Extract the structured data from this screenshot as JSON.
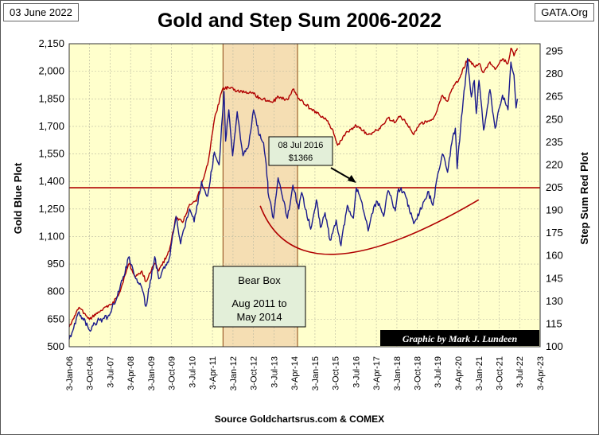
{
  "header": {
    "date_label": "03 June 2022",
    "credit": "GATA.Org",
    "title": "Gold and Step Sum 2006-2022"
  },
  "footer": {
    "source": "Source  Goldchartsrus.com  & COMEX"
  },
  "colors": {
    "plot_bg": "#ffffcc",
    "bear_box": "#f5deb3",
    "gold_line": "#1a1a8c",
    "step_sum_line": "#b00000",
    "annotation_bg": "#e3efd9",
    "graphic_credit_bg": "#000000"
  },
  "chart_data": {
    "type": "line",
    "title": "Gold and Step Sum 2006-2022",
    "xlabel": "",
    "ylabel_left": "Gold    Blue Plot",
    "ylabel_right": "Step Sum     Red Plot",
    "x_tick_labels": [
      "3-Jan-06",
      "3-Oct-06",
      "3-Jul-07",
      "3-Apr-08",
      "3-Jan-09",
      "3-Oct-09",
      "3-Jul-10",
      "3-Apr-11",
      "3-Jan-12",
      "3-Oct-12",
      "3-Jul-13",
      "3-Apr-14",
      "3-Jan-15",
      "3-Oct-15",
      "3-Jul-16",
      "3-Apr-17",
      "3-Jan-18",
      "3-Oct-18",
      "3-Jul-19",
      "3-Apr-20",
      "3-Jan-21",
      "3-Oct-21",
      "3-Jul-22",
      "3-Apr-23"
    ],
    "xlim": [
      "2006-01-03",
      "2023-04-03"
    ],
    "left_axis": {
      "ylim": [
        500,
        2150
      ],
      "ticks": [
        "500",
        "650",
        "800",
        "950",
        "1,100",
        "1,250",
        "1,400",
        "1,550",
        "1,700",
        "1,850",
        "2,000",
        "2,150"
      ]
    },
    "right_axis": {
      "ylim": [
        100,
        300
      ],
      "ticks": [
        "100",
        "115",
        "130",
        "145",
        "160",
        "175",
        "190",
        "205",
        "220",
        "235",
        "250",
        "265",
        "280",
        "295"
      ]
    },
    "grid": true,
    "series": [
      {
        "axis": "left",
        "color": "#1a1a8c",
        "points": [
          [
            "2006-01-03",
            540
          ],
          [
            "2006-05-15",
            690
          ],
          [
            "2006-10-01",
            590
          ],
          [
            "2007-01-15",
            640
          ],
          [
            "2007-06-01",
            660
          ],
          [
            "2007-11-01",
            800
          ],
          [
            "2008-03-15",
            990
          ],
          [
            "2008-06-01",
            880
          ],
          [
            "2008-09-01",
            820
          ],
          [
            "2008-10-25",
            720
          ],
          [
            "2009-02-20",
            990
          ],
          [
            "2009-04-15",
            870
          ],
          [
            "2009-09-01",
            980
          ],
          [
            "2009-12-02",
            1210
          ],
          [
            "2010-02-01",
            1060
          ],
          [
            "2010-06-01",
            1250
          ],
          [
            "2010-08-01",
            1180
          ],
          [
            "2010-11-08",
            1400
          ],
          [
            "2011-01-28",
            1320
          ],
          [
            "2011-04-29",
            1560
          ],
          [
            "2011-07-01",
            1490
          ],
          [
            "2011-09-05",
            1890
          ],
          [
            "2011-09-26",
            1620
          ],
          [
            "2011-11-08",
            1790
          ],
          [
            "2011-12-29",
            1540
          ],
          [
            "2012-02-28",
            1780
          ],
          [
            "2012-05-16",
            1540
          ],
          [
            "2012-08-01",
            1600
          ],
          [
            "2012-10-04",
            1790
          ],
          [
            "2012-12-20",
            1650
          ],
          [
            "2013-02-15",
            1610
          ],
          [
            "2013-04-12",
            1400
          ],
          [
            "2013-04-15",
            1340
          ],
          [
            "2013-06-27",
            1200
          ],
          [
            "2013-08-28",
            1420
          ],
          [
            "2013-12-31",
            1200
          ],
          [
            "2014-03-14",
            1380
          ],
          [
            "2014-06-01",
            1250
          ],
          [
            "2014-07-10",
            1340
          ],
          [
            "2014-11-07",
            1140
          ],
          [
            "2015-01-22",
            1300
          ],
          [
            "2015-03-17",
            1150
          ],
          [
            "2015-05-18",
            1230
          ],
          [
            "2015-07-24",
            1080
          ],
          [
            "2015-10-14",
            1190
          ],
          [
            "2015-12-17",
            1050
          ],
          [
            "2016-03-11",
            1270
          ],
          [
            "2016-05-31",
            1200
          ],
          [
            "2016-07-08",
            1366
          ],
          [
            "2016-09-01",
            1310
          ],
          [
            "2016-12-15",
            1130
          ],
          [
            "2017-02-27",
            1260
          ],
          [
            "2017-04-17",
            1290
          ],
          [
            "2017-07-10",
            1210
          ],
          [
            "2017-09-08",
            1350
          ],
          [
            "2017-12-12",
            1240
          ],
          [
            "2018-01-25",
            1360
          ],
          [
            "2018-04-15",
            1340
          ],
          [
            "2018-08-16",
            1170
          ],
          [
            "2018-11-01",
            1230
          ],
          [
            "2019-02-20",
            1345
          ],
          [
            "2019-05-01",
            1270
          ],
          [
            "2019-06-25",
            1420
          ],
          [
            "2019-09-04",
            1550
          ],
          [
            "2019-11-12",
            1450
          ],
          [
            "2020-01-08",
            1610
          ],
          [
            "2020-02-24",
            1690
          ],
          [
            "2020-03-19",
            1470
          ],
          [
            "2020-05-15",
            1750
          ],
          [
            "2020-08-06",
            2070
          ],
          [
            "2020-09-25",
            1860
          ],
          [
            "2020-11-04",
            1950
          ],
          [
            "2020-11-30",
            1770
          ],
          [
            "2021-01-05",
            1950
          ],
          [
            "2021-03-08",
            1680
          ],
          [
            "2021-06-01",
            1900
          ],
          [
            "2021-08-09",
            1690
          ],
          [
            "2021-11-16",
            1870
          ],
          [
            "2022-01-28",
            1790
          ],
          [
            "2022-03-08",
            2050
          ],
          [
            "2022-04-18",
            1980
          ],
          [
            "2022-05-16",
            1800
          ],
          [
            "2022-06-03",
            1850
          ]
        ]
      },
      {
        "axis": "right",
        "color": "#b00000",
        "points": [
          [
            "2006-01-03",
            113
          ],
          [
            "2006-05-15",
            126
          ],
          [
            "2006-10-01",
            118
          ],
          [
            "2007-03-01",
            124
          ],
          [
            "2007-08-01",
            128
          ],
          [
            "2007-11-01",
            135
          ],
          [
            "2008-03-15",
            155
          ],
          [
            "2008-06-01",
            146
          ],
          [
            "2008-09-01",
            150
          ],
          [
            "2008-10-25",
            143
          ],
          [
            "2009-02-20",
            155
          ],
          [
            "2009-04-15",
            150
          ],
          [
            "2009-09-01",
            163
          ],
          [
            "2009-12-02",
            186
          ],
          [
            "2010-03-01",
            182
          ],
          [
            "2010-06-01",
            194
          ],
          [
            "2010-09-01",
            196
          ],
          [
            "2011-01-28",
            220
          ],
          [
            "2011-04-29",
            250
          ],
          [
            "2011-08-15",
            270
          ],
          [
            "2011-11-01",
            271
          ],
          [
            "2012-03-01",
            269
          ],
          [
            "2012-06-01",
            268
          ],
          [
            "2012-10-04",
            267
          ],
          [
            "2013-01-01",
            264
          ],
          [
            "2013-06-27",
            262
          ],
          [
            "2013-09-01",
            265
          ],
          [
            "2014-01-01",
            263
          ],
          [
            "2014-03-14",
            270
          ],
          [
            "2014-06-01",
            264
          ],
          [
            "2014-11-07",
            257
          ],
          [
            "2015-03-01",
            253
          ],
          [
            "2015-06-01",
            250
          ],
          [
            "2015-09-01",
            243
          ],
          [
            "2015-11-01",
            233
          ],
          [
            "2016-03-11",
            242
          ],
          [
            "2016-07-08",
            246
          ],
          [
            "2016-12-15",
            240
          ],
          [
            "2017-04-17",
            243
          ],
          [
            "2017-07-10",
            247
          ],
          [
            "2017-09-08",
            251
          ],
          [
            "2017-12-12",
            248
          ],
          [
            "2018-01-25",
            252
          ],
          [
            "2018-04-15",
            250
          ],
          [
            "2018-08-16",
            240
          ],
          [
            "2018-11-01",
            247
          ],
          [
            "2019-02-20",
            249
          ],
          [
            "2019-05-01",
            250
          ],
          [
            "2019-06-25",
            256
          ],
          [
            "2019-09-04",
            266
          ],
          [
            "2019-11-12",
            262
          ],
          [
            "2020-01-08",
            270
          ],
          [
            "2020-04-15",
            277
          ],
          [
            "2020-08-06",
            290
          ],
          [
            "2020-11-04",
            285
          ],
          [
            "2021-01-05",
            287
          ],
          [
            "2021-03-08",
            281
          ],
          [
            "2021-06-01",
            288
          ],
          [
            "2021-08-09",
            283
          ],
          [
            "2021-11-16",
            290
          ],
          [
            "2022-01-28",
            287
          ],
          [
            "2022-03-08",
            297
          ],
          [
            "2022-04-18",
            292
          ],
          [
            "2022-06-03",
            297
          ]
        ]
      }
    ],
    "reference_lines": [
      {
        "axis": "left",
        "value": 1366,
        "color": "#b00000"
      }
    ],
    "bear_box": {
      "x_start": "2011-08-22",
      "x_end": "2014-05-15",
      "label_lines": [
        "Bear Box",
        "Aug 2011  to",
        "May 2014"
      ]
    },
    "trend_arc": {
      "axis": "right",
      "points": [
        [
          "2013-01-01",
          193
        ],
        [
          "2015-09-15",
          161
        ],
        [
          "2021-01-01",
          197
        ]
      ]
    },
    "annotations": [
      {
        "label_lines": [
          "08 Jul 2016",
          "$1366"
        ],
        "target_x": "2016-07-08",
        "target_y": 1366,
        "axis": "left"
      }
    ],
    "graphic_credit": "Graphic by Mark J. Lundeen"
  }
}
